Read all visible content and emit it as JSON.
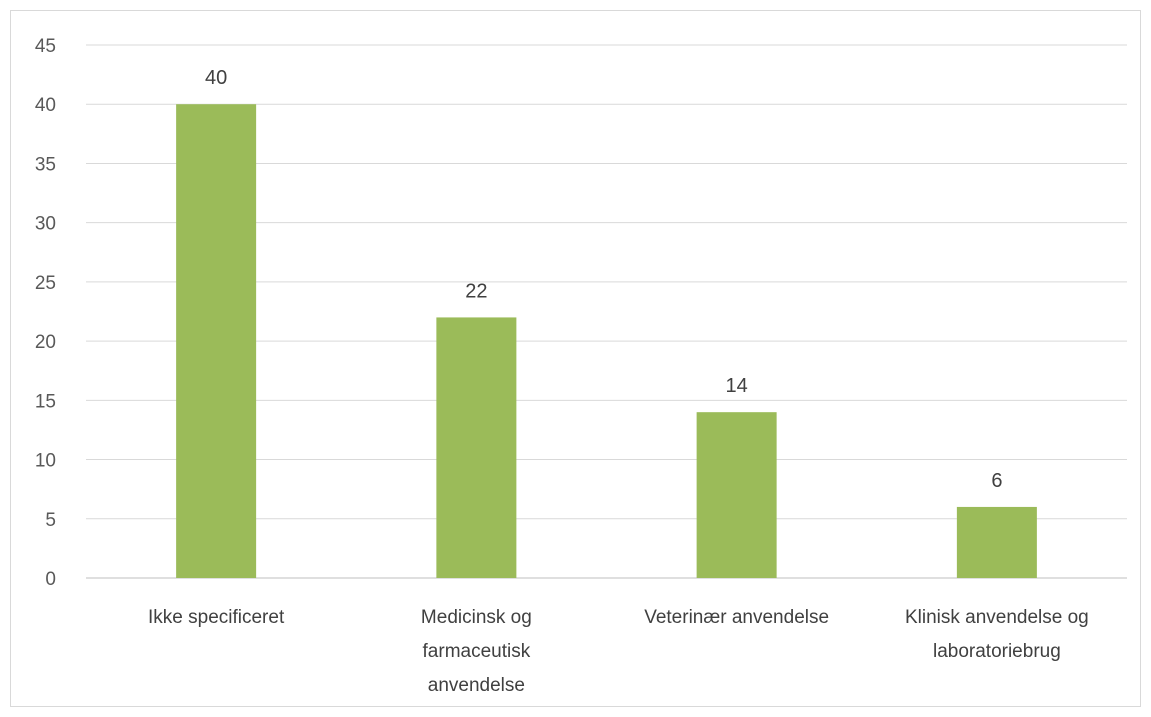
{
  "chart_data": {
    "type": "bar",
    "categories": [
      [
        "Ikke specificeret"
      ],
      [
        "Medicinsk og",
        "farmaceutisk",
        "anvendelse"
      ],
      [
        "Veterinær anvendelse"
      ],
      [
        "Klinisk anvendelse og",
        "laboratoriebrug"
      ]
    ],
    "values": [
      40,
      22,
      14,
      6
    ],
    "data_labels": [
      "40",
      "22",
      "14",
      "6"
    ],
    "y_ticks": [
      "0",
      "5",
      "10",
      "15",
      "20",
      "25",
      "30",
      "35",
      "40",
      "45"
    ],
    "ylim": [
      0,
      45
    ],
    "grid": true,
    "legend": "none",
    "bar_color": "#9bbb59",
    "title": "",
    "xlabel": "",
    "ylabel": ""
  }
}
